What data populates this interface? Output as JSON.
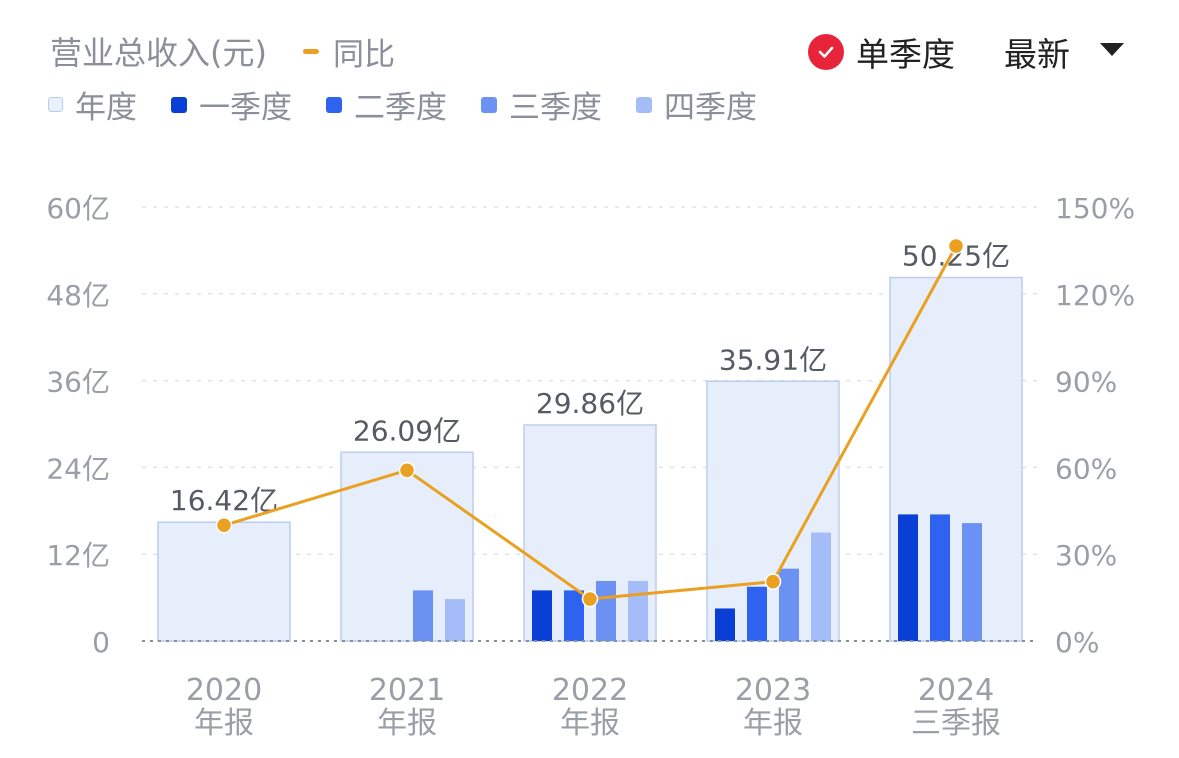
{
  "header": {
    "title": "营业总收入(元)",
    "yoy_legend": "同比",
    "single_quarter_label": "单季度",
    "dropdown_label": "最新"
  },
  "legend": [
    {
      "label": "年度",
      "color": "#eaf0fc"
    },
    {
      "label": "一季度",
      "color": "#0a3fd6"
    },
    {
      "label": "二季度",
      "color": "#2d63ef"
    },
    {
      "label": "三季度",
      "color": "#6b91f2"
    },
    {
      "label": "四季度",
      "color": "#a4bcf7"
    }
  ],
  "colors": {
    "annual_fill": "#e7eefb",
    "annual_border": "#bccdf0",
    "yoy_line": "#eaa020",
    "axis_text": "#9a9ea6",
    "value_label": "#555a63",
    "check_red": "#e8243a"
  },
  "chart_data": {
    "type": "bar",
    "categories": [
      "2020\n年报",
      "2021\n年报",
      "2022\n年报",
      "2023\n年报",
      "2024\n三季报"
    ],
    "category_lines": [
      [
        "2020",
        "年报"
      ],
      [
        "2021",
        "年报"
      ],
      [
        "2022",
        "年报"
      ],
      [
        "2023",
        "年报"
      ],
      [
        "2024",
        "三季报"
      ]
    ],
    "annual": {
      "values": [
        16.42,
        26.09,
        29.86,
        35.91,
        50.25
      ],
      "labels": [
        "16.42亿",
        "26.09亿",
        "29.86亿",
        "35.91亿",
        "50.25亿"
      ]
    },
    "series": [
      {
        "name": "一季度",
        "values": [
          null,
          null,
          7.0,
          4.5,
          17.5
        ]
      },
      {
        "name": "二季度",
        "values": [
          null,
          null,
          7.0,
          7.5,
          17.5
        ]
      },
      {
        "name": "三季度",
        "values": [
          null,
          7.0,
          8.3,
          10.0,
          16.3
        ]
      },
      {
        "name": "四季度",
        "values": [
          null,
          5.8,
          8.3,
          15.0,
          null
        ]
      }
    ],
    "yoy": {
      "name": "同比",
      "values": [
        40,
        59,
        14.5,
        20.5,
        136.5
      ]
    },
    "y_left": {
      "ticks": [
        "0",
        "12亿",
        "24亿",
        "36亿",
        "48亿",
        "60亿"
      ],
      "range": [
        0,
        60
      ]
    },
    "y_right": {
      "ticks": [
        "0%",
        "30%",
        "60%",
        "90%",
        "120%",
        "150%"
      ],
      "range": [
        0,
        150
      ]
    },
    "grid": true
  }
}
